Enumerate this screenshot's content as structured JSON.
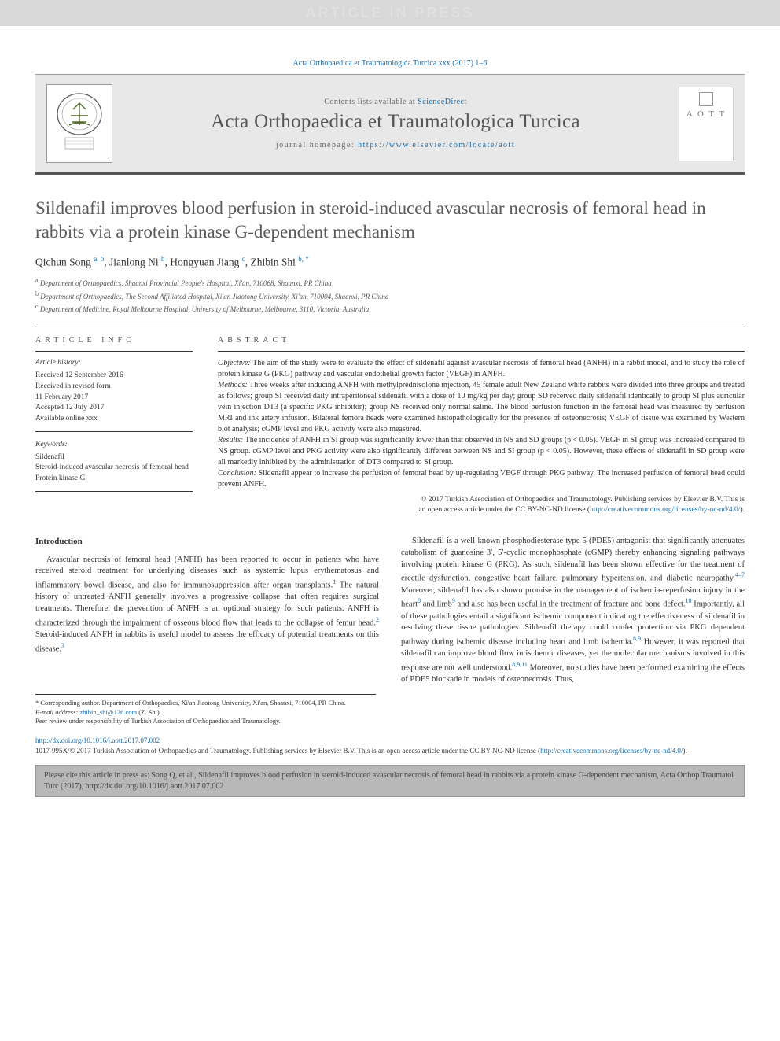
{
  "banner": {
    "text": "ARTICLE IN PRESS"
  },
  "citation_top": "Acta Orthopaedica et Traumatologica Turcica xxx (2017) 1–6",
  "header": {
    "contents_prefix": "Contents lists available at ",
    "contents_link": "ScienceDirect",
    "journal_name": "Acta Orthopaedica et Traumatologica Turcica",
    "homepage_prefix": "journal homepage: ",
    "homepage_url": "https://www.elsevier.com/locate/aott",
    "cover_abbrev": "A O T T"
  },
  "article": {
    "title": "Sildenafil improves blood perfusion in steroid-induced avascular necrosis of femoral head in rabbits via a protein kinase G-dependent mechanism",
    "authors_html": "Qichun Song <sup>a, b</sup>, Jianlong Ni <sup>b</sup>, Hongyuan Jiang <sup>c</sup>, Zhibin Shi <sup>b, *</sup>",
    "affiliations": [
      {
        "sup": "a",
        "text": "Department of Orthopaedics, Shaanxi Provincial People's Hospital, Xi'an, 710068, Shaanxi, PR China"
      },
      {
        "sup": "b",
        "text": "Department of Orthopaedics, The Second Affiliated Hospital, Xi'an Jiaotong University, Xi'an, 710004, Shaanxi, PR China"
      },
      {
        "sup": "c",
        "text": "Department of Medicine, Royal Melbourne Hospital, University of Melbourne, Melbourne, 3110, Victoria, Australia"
      }
    ]
  },
  "info": {
    "heading": "ARTICLE INFO",
    "history_label": "Article history:",
    "history": [
      "Received 12 September 2016",
      "Received in revised form",
      "11 February 2017",
      "Accepted 12 July 2017",
      "Available online xxx"
    ],
    "keywords_label": "Keywords:",
    "keywords": [
      "Sildenafil",
      "Steroid-induced avascular necrosis of femoral head",
      "Protein kinase G"
    ]
  },
  "abstract": {
    "heading": "ABSTRACT",
    "sections": [
      {
        "label": "Objective:",
        "text": " The aim of the study were to evaluate the effect of sildenafil against avascular necrosis of femoral head (ANFH) in a rabbit model, and to study the role of protein kinase G (PKG) pathway and vascular endothelial growth factor (VEGF) in ANFH."
      },
      {
        "label": "Methods:",
        "text": " Three weeks after inducing ANFH with methylprednisolone injection, 45 female adult New Zealand white rabbits were divided into three groups and treated as follows; group SI received daily intraperitoneal sildenafil with a dose of 10 mg/kg per day; group SD received daily sildenafil identically to group SI plus auricular vein injection DT3 (a specific PKG inhibitor); group NS received only normal saline. The blood perfusion function in the femoral head was measured by perfusion MRI and ink artery infusion. Bilateral femora heads were examined histopathologically for the presence of osteonecrosis; VEGF of tissue was examined by Western blot analysis; cGMP level and PKG activity were also measured."
      },
      {
        "label": "Results:",
        "text": " The incidence of ANFH in SI group was significantly lower than that observed in NS and SD groups (p < 0.05). VEGF in SI group was increased compared to NS group. cGMP level and PKG activity were also significantly different between NS and SI group (p < 0.05). However, these effects of sildenafil in SD group were all markedly inhibited by the administration of DT3 compared to SI group."
      },
      {
        "label": "Conclusion:",
        "text": " Sildenafil appear to increase the perfusion of femoral head by up-regulating VEGF through PKG pathway. The increased perfusion of femoral head could prevent ANFH."
      }
    ],
    "copyright_line1": "© 2017 Turkish Association of Orthopaedics and Traumatology. Publishing services by Elsevier B.V. This is",
    "copyright_line2": "an open access article under the CC BY-NC-ND license (",
    "copyright_link": "http://creativecommons.org/licenses/by-nc-nd/4.0/",
    "copyright_close": ")."
  },
  "body": {
    "intro_heading": "Introduction",
    "col1_p1": "Avascular necrosis of femoral head (ANFH) has been reported to occur in patients who have received steroid treatment for underlying diseases such as systemic lupus erythematosus and inflammatory bowel disease, and also for immunosuppression after organ transplants.<sup>1</sup> The natural history of untreated ANFH generally involves a progressive collapse that often requires surgical treatments. Therefore, the prevention of ANFH is an optional strategy for such patients. ANFH is characterized through the impairment of osseous blood flow that leads to the collapse of femur head.<sup>2</sup> Steroid-induced ANFH in rabbits is useful model to assess the efficacy of potential treatments on this disease.<sup>3</sup>",
    "col2_p1": "Sildenafil is a well-known phosphodiesterase type 5 (PDE5) antagonist that significantly attenuates catabolism of guanosine 3′, 5′-cyclic monophosphate (cGMP) thereby enhancing signaling pathways involving protein kinase G (PKG). As such, sildenafil has been shown effective for the treatment of erectile dysfunction, congestive heart failure, pulmonary hypertension, and diabetic neuropathy.<sup>4–7</sup> Moreover, sildenafil has also shown promise in the management of ischemia-reperfusion injury in the heart<sup>8</sup> and limb<sup>9</sup> and also has been useful in the treatment of fracture and bone defect.<sup>10</sup> Importantly, all of these pathologies entail a significant ischemic component indicating the effectiveness of sildenafil in resolving these tissue pathologies. Sildenafil therapy could confer protection via PKG dependent pathway during ischemic disease including heart and limb ischemia.<sup>8,9</sup> However, it was reported that sildenafil can improve blood flow in ischemic diseases, yet the molecular mechanisms involved in this response are not well understood.<sup>8,9,11</sup> Moreover, no studies have been performed examining the effects of PDE5 blockade in models of osteonecrosis. Thus,"
  },
  "footnotes": {
    "corresponding": "* Corresponding author. Department of Orthopaedics, Xi'an Jiaotong University, Xi'an, Shaanxi, 710004, PR China.",
    "email_label": "E-mail address:",
    "email": "zhibin_shi@126.com",
    "email_suffix": " (Z. Shi).",
    "peer": "Peer review under responsibility of Turkish Association of Orthopaedics and Traumatology."
  },
  "doi": {
    "url": "http://dx.doi.org/10.1016/j.aott.2017.07.002",
    "issn_line": "1017-995X/© 2017 Turkish Association of Orthopaedics and Traumatology. Publishing services by Elsevier B.V. This is an open access article under the CC BY-NC-ND license (",
    "cc_link": "http://creativecommons.org/licenses/by-nc-nd/4.0/",
    "close": ")."
  },
  "citebox": "Please cite this article in press as: Song Q, et al., Sildenafil improves blood perfusion in steroid-induced avascular necrosis of femoral head in rabbits via a protein kinase G-dependent mechanism, Acta Orthop Traumatol Turc (2017), http://dx.doi.org/10.1016/j.aott.2017.07.002",
  "colors": {
    "link": "#1a6ba8",
    "banner_bg": "#d8d8d8",
    "banner_fg": "#e0e0e0",
    "header_bg": "#e8e8e8",
    "citebox_bg": "#b8b8b8"
  }
}
